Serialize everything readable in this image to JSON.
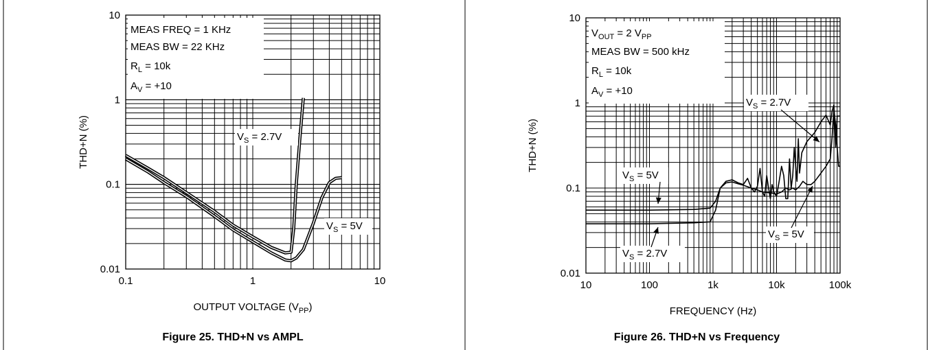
{
  "chart_data": [
    {
      "type": "line",
      "figure_caption": "Figure 25. THD+N vs AMPL",
      "xlabel": "OUTPUT VOLTAGE (V",
      "xlabel_sub": "PP",
      "xlabel_tail": ")",
      "ylabel": "THD+N (%)",
      "x_scale": "log",
      "y_scale": "log",
      "xlim": [
        0.1,
        10
      ],
      "ylim": [
        0.01,
        10
      ],
      "x_ticks": [
        0.1,
        1,
        10
      ],
      "x_tick_labels": [
        "0.1",
        "1",
        "10"
      ],
      "y_ticks": [
        0.01,
        0.1,
        1,
        10
      ],
      "y_tick_labels": [
        "0.01",
        "0.1",
        "1",
        "10"
      ],
      "grid": true,
      "conditions": [
        {
          "main": "MEAS FREQ = 1 KHz",
          "sub": "",
          "tail": ""
        },
        {
          "main": "MEAS BW = 22 KHz",
          "sub": "",
          "tail": ""
        },
        {
          "main": "R",
          "sub": "L",
          "tail": " = 10k"
        },
        {
          "main": "A",
          "sub": "V",
          "tail": " = +10"
        }
      ],
      "series": [
        {
          "label": "V",
          "label_sub": "S",
          "label_tail": " = 2.7V",
          "x": [
            0.1,
            0.15,
            0.2,
            0.3,
            0.5,
            0.7,
            1.0,
            1.4,
            1.8,
            2.0,
            2.1,
            2.2,
            2.35,
            2.5
          ],
          "y": [
            0.22,
            0.155,
            0.12,
            0.08,
            0.048,
            0.033,
            0.024,
            0.018,
            0.0155,
            0.0158,
            0.03,
            0.1,
            0.35,
            1.05
          ]
        },
        {
          "label": "V",
          "label_sub": "S",
          "label_tail": " = 5V",
          "x": [
            0.1,
            0.15,
            0.2,
            0.3,
            0.5,
            0.7,
            1.0,
            1.4,
            1.8,
            2.0,
            2.2,
            2.5,
            3.0,
            3.5,
            4.0,
            4.5,
            5.0
          ],
          "y": [
            0.2,
            0.14,
            0.105,
            0.072,
            0.042,
            0.029,
            0.021,
            0.0155,
            0.0128,
            0.0125,
            0.0135,
            0.017,
            0.035,
            0.07,
            0.105,
            0.118,
            0.12
          ]
        }
      ]
    },
    {
      "type": "line",
      "figure_caption": "Figure 26. THD+N vs Frequency",
      "xlabel": "FREQUENCY (Hz)",
      "ylabel": "THD+N (%)",
      "x_scale": "log",
      "y_scale": "log",
      "xlim": [
        10,
        100000
      ],
      "ylim": [
        0.01,
        10
      ],
      "x_ticks": [
        10,
        100,
        1000,
        10000,
        100000
      ],
      "x_tick_labels": [
        "10",
        "100",
        "1k",
        "10k",
        "100k"
      ],
      "y_ticks": [
        0.01,
        0.1,
        1,
        10
      ],
      "y_tick_labels": [
        "0.01",
        "0.1",
        "1",
        "10"
      ],
      "grid": true,
      "conditions": [
        {
          "main": "V",
          "sub": "OUT",
          "tail": " = 2 V",
          "sub2": "PP"
        },
        {
          "main": "MEAS BW = 500 kHz",
          "sub": "",
          "tail": ""
        },
        {
          "main": "R",
          "sub": "L",
          "tail": " = 10k"
        },
        {
          "main": "A",
          "sub": "V",
          "tail": " = +10"
        }
      ],
      "series": [
        {
          "label": "V",
          "label_sub": "S",
          "label_tail": " = 2.7V",
          "x": [
            10,
            100,
            500,
            900,
            1100,
            1300,
            1600,
            2000,
            2500,
            3000,
            3500,
            4000,
            4500,
            5000,
            5500,
            6000,
            6500,
            7000,
            7500,
            8000,
            8500,
            9000,
            10000,
            11000,
            12000,
            13000,
            14000,
            15000,
            16000,
            17000,
            18000,
            19000,
            20000,
            21000,
            22000,
            23000,
            25000,
            30000,
            40000,
            50000,
            60000,
            70000,
            75000,
            80000,
            85000,
            90000,
            100000
          ],
          "y": [
            0.038,
            0.038,
            0.039,
            0.04,
            0.055,
            0.1,
            0.12,
            0.125,
            0.115,
            0.11,
            0.13,
            0.1,
            0.09,
            0.105,
            0.17,
            0.09,
            0.08,
            0.14,
            0.1,
            0.075,
            0.11,
            0.09,
            0.08,
            0.12,
            0.18,
            0.14,
            0.075,
            0.075,
            0.22,
            0.1,
            0.14,
            0.3,
            0.18,
            0.12,
            0.38,
            0.15,
            0.26,
            0.35,
            0.45,
            0.6,
            0.72,
            0.55,
            0.8,
            0.95,
            0.3,
            0.7,
            0.7
          ]
        },
        {
          "label": "V",
          "label_sub": "S",
          "label_tail": " = 5V",
          "x": [
            10,
            100,
            500,
            900,
            1100,
            1300,
            1600,
            2000,
            2500,
            3000,
            4000,
            5000,
            6000,
            8000,
            10000,
            12000,
            14000,
            16000,
            18000,
            20000,
            23000,
            26000,
            30000,
            35000,
            40000,
            50000,
            60000,
            70000,
            75000,
            80000,
            85000,
            90000,
            95000,
            100000
          ],
          "y": [
            0.055,
            0.055,
            0.056,
            0.058,
            0.07,
            0.1,
            0.115,
            0.118,
            0.112,
            0.108,
            0.1,
            0.095,
            0.09,
            0.088,
            0.085,
            0.09,
            0.1,
            0.095,
            0.1,
            0.095,
            0.105,
            0.12,
            0.11,
            0.11,
            0.12,
            0.15,
            0.18,
            0.22,
            0.4,
            0.85,
            0.55,
            0.3,
            0.18,
            0.18
          ]
        }
      ]
    }
  ]
}
